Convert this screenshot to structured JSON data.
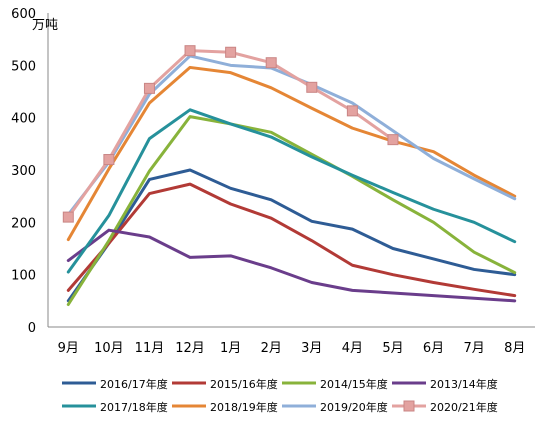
{
  "chart_data": {
    "type": "line",
    "ylabel": "万吨",
    "ylim": [
      0,
      600
    ],
    "yticks": [
      0,
      100,
      200,
      300,
      400,
      500,
      600
    ],
    "categories": [
      "9月",
      "10月",
      "11月",
      "12月",
      "1月",
      "2月",
      "3月",
      "4月",
      "5月",
      "6月",
      "7月",
      "8月"
    ],
    "grid": false,
    "legend_position": "bottom",
    "series": [
      {
        "name": "2016/17年度",
        "color": "#2e5c95",
        "marker": null,
        "values": [
          50,
          160,
          282,
          300,
          265,
          243,
          202,
          187,
          150,
          130,
          110,
          100
        ]
      },
      {
        "name": "2015/16年度",
        "color": "#b23a36",
        "marker": null,
        "values": [
          70,
          160,
          255,
          273,
          235,
          208,
          165,
          118,
          100,
          85,
          72,
          60
        ]
      },
      {
        "name": "2014/15年度",
        "color": "#88b33b",
        "marker": null,
        "values": [
          43,
          165,
          298,
          402,
          388,
          372,
          330,
          288,
          243,
          200,
          143,
          104
        ]
      },
      {
        "name": "2013/14年度",
        "color": "#6a3d8b",
        "marker": null,
        "values": [
          127,
          185,
          172,
          133,
          136,
          113,
          85,
          70,
          65,
          60,
          55,
          50
        ]
      },
      {
        "name": "2017/18年度",
        "color": "#26919b",
        "marker": null,
        "values": [
          105,
          213,
          360,
          415,
          388,
          363,
          325,
          290,
          257,
          225,
          200,
          163
        ]
      },
      {
        "name": "2018/19年度",
        "color": "#e58635",
        "marker": null,
        "values": [
          167,
          302,
          428,
          496,
          486,
          457,
          418,
          380,
          355,
          335,
          290,
          250
        ]
      },
      {
        "name": "2019/20年度",
        "color": "#8fafd9",
        "marker": null,
        "values": [
          215,
          315,
          445,
          518,
          500,
          495,
          463,
          428,
          375,
          322,
          283,
          245
        ]
      },
      {
        "name": "2020/21年度",
        "color": "#e3a2a0",
        "marker": "square",
        "values": [
          210,
          320,
          456,
          528,
          525,
          505,
          458,
          413,
          358,
          null,
          null,
          null
        ]
      }
    ]
  }
}
